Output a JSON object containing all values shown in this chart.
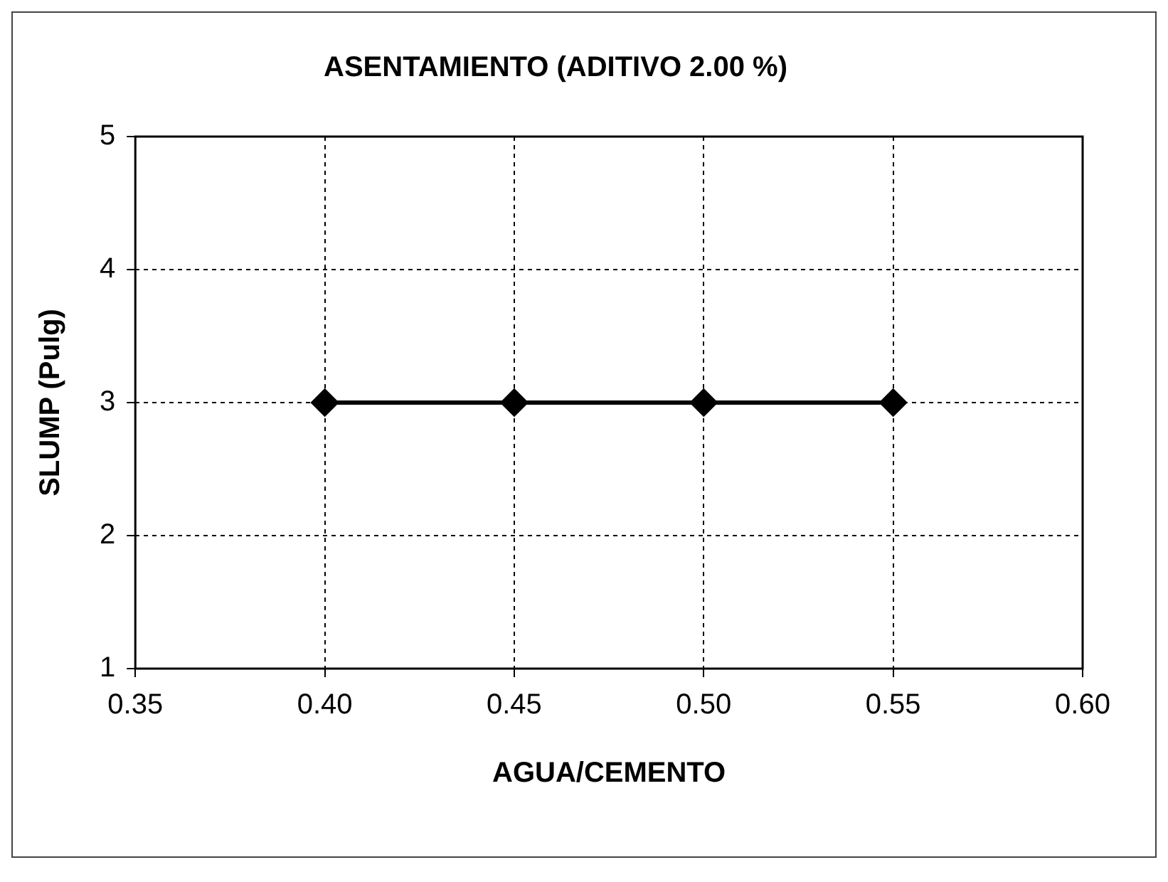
{
  "chart_data": {
    "type": "line",
    "title": "ASENTAMIENTO (ADITIVO 2.00 %)",
    "xlabel": "AGUA/CEMENTO",
    "ylabel": "SLUMP (Pulg)",
    "x": [
      0.4,
      0.45,
      0.5,
      0.55
    ],
    "series": [
      {
        "color": "#000000",
        "values": [
          3,
          3,
          3,
          3
        ]
      }
    ],
    "xlim": [
      0.35,
      0.6
    ],
    "xticks": [
      {
        "value": 0.35,
        "label": "0.35"
      },
      {
        "value": 0.4,
        "label": "0.40"
      },
      {
        "value": 0.45,
        "label": "0.45"
      },
      {
        "value": 0.5,
        "label": "0.50"
      },
      {
        "value": 0.55,
        "label": "0.55"
      },
      {
        "value": 0.6,
        "label": "0.60"
      }
    ],
    "ylim": [
      1,
      5
    ],
    "yticks": [
      1,
      2,
      3,
      4,
      5
    ],
    "grid": true,
    "legend": false,
    "marker": "diamond",
    "line_style": "solid"
  }
}
